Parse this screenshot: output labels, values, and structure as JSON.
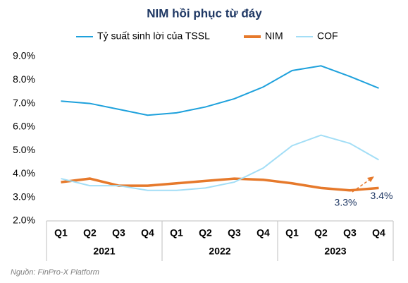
{
  "chart_data": {
    "type": "line",
    "title": "NIM hồi phục từ đáy",
    "categories": [
      "Q1",
      "Q2",
      "Q3",
      "Q4",
      "Q1",
      "Q2",
      "Q3",
      "Q4",
      "Q1",
      "Q2",
      "Q3",
      "Q4"
    ],
    "category_groups": [
      "2021",
      "2022",
      "2023"
    ],
    "series": [
      {
        "name": "Tỷ suất sinh lời của TSSL",
        "color": "#1ea1dc",
        "values": [
          7.1,
          7.0,
          6.75,
          6.5,
          6.6,
          6.85,
          7.2,
          7.7,
          8.4,
          8.6,
          8.15,
          7.65
        ]
      },
      {
        "name": "NIM",
        "color": "#e6792b",
        "values": [
          3.65,
          3.8,
          3.5,
          3.5,
          3.6,
          3.7,
          3.8,
          3.75,
          3.6,
          3.4,
          3.3,
          3.4
        ],
        "value_labels": [
          null,
          null,
          null,
          null,
          null,
          null,
          null,
          null,
          null,
          null,
          "3.3%",
          "3.4%"
        ]
      },
      {
        "name": "COF",
        "color": "#a3def6",
        "values": [
          3.8,
          3.5,
          3.5,
          3.3,
          3.3,
          3.4,
          3.65,
          4.25,
          5.2,
          5.65,
          5.3,
          4.6
        ]
      }
    ],
    "ylim": [
      2,
      9
    ],
    "yticks": [
      {
        "value": 2,
        "label": "2.0%"
      },
      {
        "value": 3,
        "label": "3.0%"
      },
      {
        "value": 4,
        "label": "4.0%"
      },
      {
        "value": 5,
        "label": "5.0%"
      },
      {
        "value": 6,
        "label": "6.0%"
      },
      {
        "value": 7,
        "label": "7.0%"
      },
      {
        "value": 8,
        "label": "8.0%"
      },
      {
        "value": 9,
        "label": "9.0%"
      }
    ],
    "source": "Nguồn: FinPro-X Platform"
  }
}
